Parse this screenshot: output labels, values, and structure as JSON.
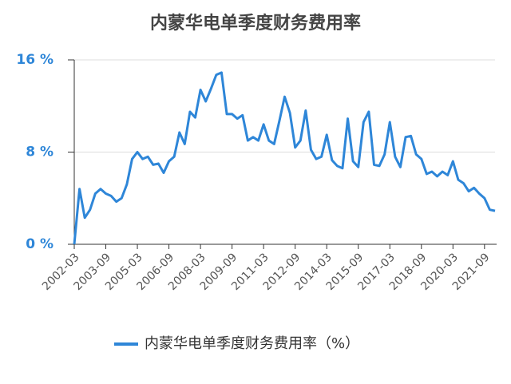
{
  "chart_data": {
    "type": "line",
    "title": "内蒙华电单季度财务费用率",
    "categories": [
      "2002-03",
      null,
      null,
      null,
      null,
      null,
      "2003-09",
      null,
      null,
      null,
      null,
      null,
      "2005-03",
      null,
      null,
      null,
      null,
      null,
      "2006-09",
      null,
      null,
      null,
      null,
      null,
      "2008-03",
      null,
      null,
      null,
      null,
      null,
      "2009-09",
      null,
      null,
      null,
      null,
      null,
      "2011-03",
      null,
      null,
      null,
      null,
      null,
      "2012-09",
      null,
      null,
      null,
      null,
      null,
      "2014-03",
      null,
      null,
      null,
      null,
      null,
      "2015-09",
      null,
      null,
      null,
      null,
      null,
      "2017-03",
      null,
      null,
      null,
      null,
      null,
      "2018-09",
      null,
      null,
      null,
      null,
      null,
      "2020-03",
      null,
      null,
      null,
      null,
      null,
      "2021-09",
      null,
      null
    ],
    "series": [
      {
        "name": "内蒙华电单季度财务费用率（%）",
        "color": "#2e86d8",
        "values": [
          0.0,
          4.8,
          2.3,
          3.0,
          4.4,
          4.8,
          4.4,
          4.2,
          3.7,
          4.0,
          5.2,
          7.4,
          8.0,
          7.4,
          7.6,
          6.9,
          7.0,
          6.2,
          7.2,
          7.6,
          9.7,
          8.7,
          11.5,
          11.0,
          13.4,
          12.4,
          13.5,
          14.7,
          14.9,
          11.3,
          11.3,
          10.9,
          11.2,
          9.0,
          9.3,
          9.0,
          10.4,
          9.0,
          8.7,
          10.7,
          12.8,
          11.4,
          8.4,
          9.0,
          11.6,
          8.2,
          7.4,
          7.6,
          9.5,
          7.3,
          6.8,
          6.6,
          10.9,
          7.2,
          6.7,
          10.6,
          11.5,
          6.9,
          6.8,
          7.8,
          10.6,
          7.6,
          6.7,
          9.3,
          9.4,
          7.8,
          7.4,
          6.1,
          6.3,
          5.9,
          6.3,
          6.0,
          7.2,
          5.6,
          5.3,
          4.6,
          4.9,
          4.4,
          4.0,
          3.0,
          2.9
        ]
      }
    ],
    "ylim": [
      0,
      16
    ],
    "yticks": [
      {
        "value": 0,
        "label": "0 %"
      },
      {
        "value": 8,
        "label": "8 %"
      },
      {
        "value": 16,
        "label": "16 %"
      }
    ],
    "grid": true
  }
}
